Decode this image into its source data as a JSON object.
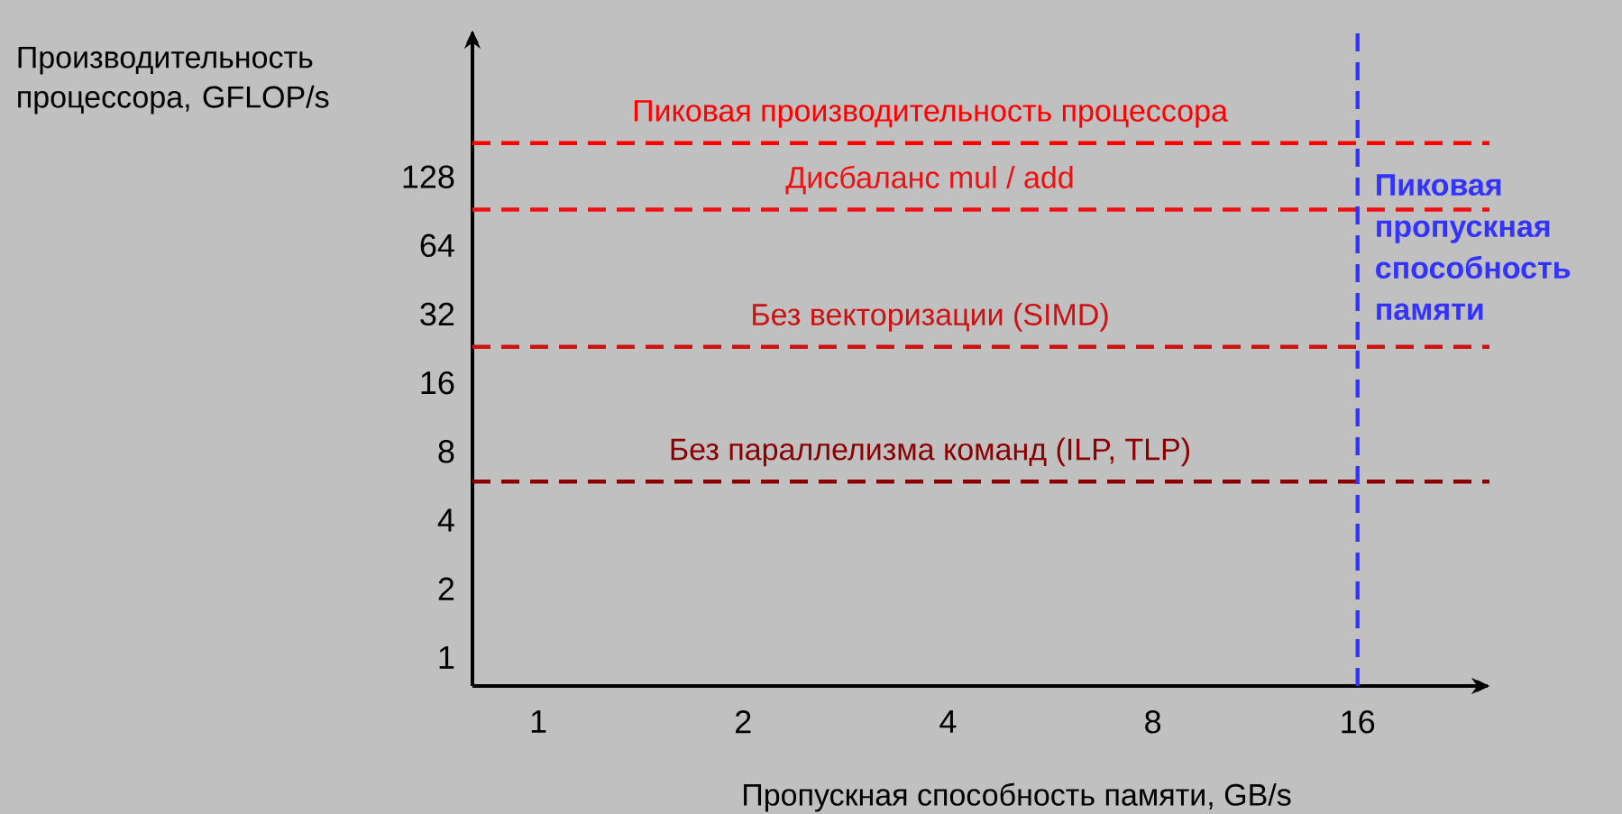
{
  "chart_data": {
    "type": "line",
    "xlabel": "Пропускная способность памяти, GB/s",
    "ylabel": "Производительность процессора, GFLOP/s",
    "log": "xy",
    "xlim": [
      0.8,
      25
    ],
    "ylim": [
      0.75,
      560
    ],
    "xticks": [
      1,
      2,
      4,
      8,
      16
    ],
    "yticks": [
      1,
      2,
      4,
      8,
      16,
      32,
      64,
      128
    ],
    "ref_lines": [
      {
        "axis": "y",
        "value": 180,
        "label": "Пиковая производительность процессора",
        "color": "#ff0000",
        "line_style": "dashed"
      },
      {
        "axis": "y",
        "value": 92,
        "label": "Дисбаланс mul / add",
        "color": "#ee1111",
        "line_style": "dashed"
      },
      {
        "axis": "y",
        "value": 23,
        "label": "Без векторизации (SIMD)",
        "color": "#cc1111",
        "line_style": "dashed"
      },
      {
        "axis": "y",
        "value": 5.9,
        "label": "Без параллелизма команд (ILP, TLP)",
        "color": "#8b0000",
        "line_style": "dashed"
      },
      {
        "axis": "x",
        "value": 16,
        "label": "Пиковая пропускная способность памяти",
        "color": "#3333ff",
        "line_style": "dashed"
      }
    ]
  }
}
